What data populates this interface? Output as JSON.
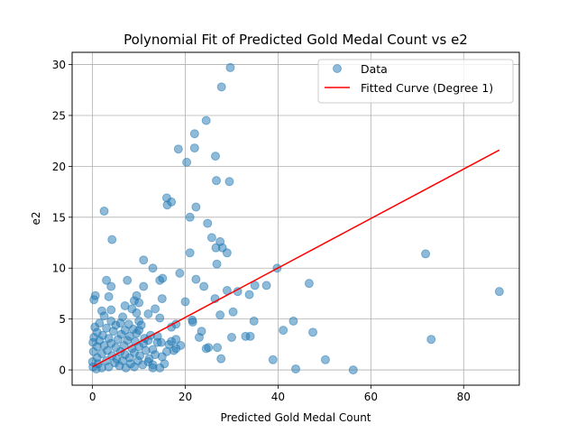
{
  "chart_data": {
    "type": "scatter",
    "title": "Polynomial Fit of Predicted Gold Medal Count vs e2",
    "xlabel": "Predicted Gold Medal Count",
    "ylabel": "e2",
    "xlim": [
      -4.4,
      92.0
    ],
    "ylim": [
      -1.5,
      31.2
    ],
    "xticks": [
      0,
      20,
      40,
      60,
      80
    ],
    "yticks": [
      0,
      5,
      10,
      15,
      20,
      25,
      30
    ],
    "grid": true,
    "legend_position": "top-right",
    "legend": [
      {
        "label": "Data",
        "marker": "circle",
        "color": "#1f77b4"
      },
      {
        "label": "Fitted Curve (Degree 1)",
        "marker": "line",
        "color": "#ff0000"
      }
    ],
    "series": [
      {
        "kind": "scatter",
        "color": "#1f77b4",
        "points": [
          [
            29.7,
            29.7
          ],
          [
            27.8,
            27.8
          ],
          [
            24.5,
            24.5
          ],
          [
            22.0,
            23.2
          ],
          [
            18.5,
            21.7
          ],
          [
            22.0,
            21.8
          ],
          [
            26.5,
            21.0
          ],
          [
            20.3,
            20.4
          ],
          [
            26.7,
            18.6
          ],
          [
            29.5,
            18.5
          ],
          [
            16.0,
            16.9
          ],
          [
            17.0,
            16.5
          ],
          [
            16.1,
            16.2
          ],
          [
            22.3,
            16.0
          ],
          [
            2.5,
            15.6
          ],
          [
            21.0,
            15.0
          ],
          [
            24.8,
            14.4
          ],
          [
            25.7,
            13.0
          ],
          [
            4.2,
            12.8
          ],
          [
            27.5,
            12.6
          ],
          [
            26.6,
            12.0
          ],
          [
            28.0,
            12.0
          ],
          [
            21.0,
            11.5
          ],
          [
            29.0,
            11.5
          ],
          [
            71.8,
            11.4
          ],
          [
            11.0,
            10.8
          ],
          [
            26.8,
            10.4
          ],
          [
            13.0,
            10.0
          ],
          [
            39.8,
            10.0
          ],
          [
            18.8,
            9.5
          ],
          [
            3.0,
            8.8
          ],
          [
            7.5,
            8.8
          ],
          [
            14.5,
            8.8
          ],
          [
            22.3,
            8.9
          ],
          [
            15.1,
            9.0
          ],
          [
            46.7,
            8.5
          ],
          [
            4.0,
            8.2
          ],
          [
            11.0,
            8.2
          ],
          [
            24.0,
            8.2
          ],
          [
            35.0,
            8.3
          ],
          [
            37.5,
            8.3
          ],
          [
            29.0,
            7.8
          ],
          [
            31.3,
            7.7
          ],
          [
            87.7,
            7.7
          ],
          [
            0.6,
            7.3
          ],
          [
            3.5,
            7.2
          ],
          [
            9.5,
            7.3
          ],
          [
            15.0,
            7.0
          ],
          [
            26.4,
            7.0
          ],
          [
            33.8,
            7.4
          ],
          [
            0.3,
            6.9
          ],
          [
            9.0,
            6.8
          ],
          [
            20.0,
            6.7
          ],
          [
            10.0,
            6.6
          ],
          [
            7.0,
            6.3
          ],
          [
            13.5,
            6.0
          ],
          [
            8.5,
            6.0
          ],
          [
            30.3,
            5.7
          ],
          [
            12.0,
            5.5
          ],
          [
            9.5,
            5.6
          ],
          [
            27.5,
            5.4
          ],
          [
            14.5,
            5.1
          ],
          [
            21.5,
            4.9
          ],
          [
            10.0,
            4.8
          ],
          [
            2.0,
            5.8
          ],
          [
            4.0,
            5.9
          ],
          [
            6.5,
            5.2
          ],
          [
            21.6,
            4.7
          ],
          [
            34.8,
            4.8
          ],
          [
            43.3,
            4.8
          ],
          [
            17.0,
            4.2
          ],
          [
            41.1,
            3.9
          ],
          [
            23.5,
            3.8
          ],
          [
            47.5,
            3.7
          ],
          [
            18.0,
            4.5
          ],
          [
            23.0,
            3.2
          ],
          [
            30.0,
            3.2
          ],
          [
            33.0,
            3.3
          ],
          [
            34.0,
            3.3
          ],
          [
            73.0,
            3.0
          ],
          [
            17.0,
            2.8
          ],
          [
            19.0,
            2.4
          ],
          [
            25.0,
            2.2
          ],
          [
            26.9,
            2.2
          ],
          [
            14.8,
            2.7
          ],
          [
            18.0,
            2.1
          ],
          [
            24.5,
            2.1
          ],
          [
            15.0,
            1.3
          ],
          [
            12.0,
            0.8
          ],
          [
            15.5,
            0.6
          ],
          [
            27.7,
            1.1
          ],
          [
            38.9,
            1.0
          ],
          [
            50.2,
            1.0
          ],
          [
            13.0,
            0.5
          ],
          [
            14.5,
            0.2
          ],
          [
            43.8,
            0.1
          ],
          [
            56.2,
            0.0
          ],
          [
            0.1,
            0.3
          ],
          [
            0.0,
            0.8
          ],
          [
            0.2,
            1.8
          ],
          [
            0.1,
            2.7
          ],
          [
            0.3,
            3.2
          ],
          [
            0.5,
            4.2
          ],
          [
            0.8,
            0.1
          ],
          [
            1.0,
            1.2
          ],
          [
            1.0,
            2.3
          ],
          [
            1.0,
            3.7
          ],
          [
            1.2,
            0.6
          ],
          [
            1.5,
            4.6
          ],
          [
            1.5,
            2.9
          ],
          [
            2.0,
            1.6
          ],
          [
            2.0,
            0.2
          ],
          [
            2.2,
            3.4
          ],
          [
            2.5,
            5.3
          ],
          [
            2.5,
            2.4
          ],
          [
            3.0,
            0.9
          ],
          [
            3.0,
            4.1
          ],
          [
            3.2,
            1.9
          ],
          [
            3.5,
            3.1
          ],
          [
            3.5,
            0.3
          ],
          [
            4.0,
            2.6
          ],
          [
            4.0,
            4.8
          ],
          [
            4.2,
            1.4
          ],
          [
            4.5,
            3.8
          ],
          [
            4.8,
            0.7
          ],
          [
            5.0,
            2.2
          ],
          [
            5.0,
            4.4
          ],
          [
            5.2,
            1.1
          ],
          [
            5.5,
            3.0
          ],
          [
            5.8,
            0.4
          ],
          [
            6.0,
            1.8
          ],
          [
            6.0,
            4.6
          ],
          [
            6.2,
            3.5
          ],
          [
            6.5,
            0.9
          ],
          [
            6.8,
            2.4
          ],
          [
            7.0,
            1.5
          ],
          [
            7.0,
            3.9
          ],
          [
            7.2,
            0.2
          ],
          [
            7.5,
            2.9
          ],
          [
            7.8,
            4.5
          ],
          [
            8.0,
            1.2
          ],
          [
            8.0,
            3.3
          ],
          [
            8.2,
            0.6
          ],
          [
            8.5,
            2.1
          ],
          [
            8.8,
            4.0
          ],
          [
            9.0,
            0.3
          ],
          [
            9.0,
            1.7
          ],
          [
            9.2,
            2.8
          ],
          [
            9.5,
            3.6
          ],
          [
            9.8,
            0.9
          ],
          [
            10.0,
            2.3
          ],
          [
            10.0,
            3.9
          ],
          [
            10.2,
            1.4
          ],
          [
            10.5,
            4.4
          ],
          [
            10.8,
            0.5
          ],
          [
            11.0,
            2.6
          ],
          [
            11.2,
            3.1
          ],
          [
            11.5,
            1.9
          ],
          [
            12.0,
            2.9
          ],
          [
            12.2,
            1.1
          ],
          [
            12.5,
            3.4
          ],
          [
            13.0,
            2.0
          ],
          [
            13.0,
            0.2
          ],
          [
            13.5,
            1.5
          ],
          [
            14.0,
            2.7
          ],
          [
            14.0,
            3.3
          ],
          [
            16.0,
            1.8
          ],
          [
            16.5,
            2.5
          ],
          [
            17.5,
            1.9
          ],
          [
            18.0,
            3.0
          ]
        ]
      },
      {
        "kind": "line",
        "name": "Fitted Curve (Degree 1)",
        "color": "#ff0000",
        "x": [
          0.0,
          87.7
        ],
        "y": [
          0.3,
          21.6
        ]
      }
    ]
  }
}
